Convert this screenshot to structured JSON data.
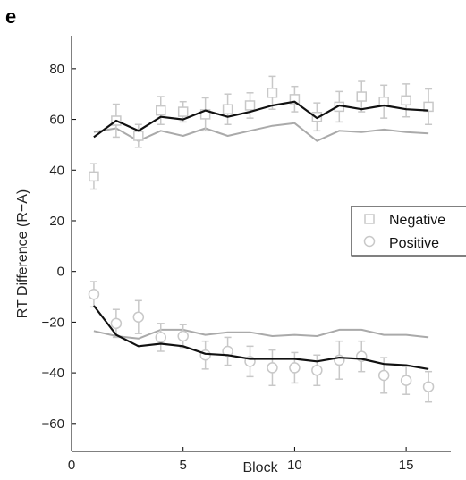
{
  "panel_label": "e",
  "colors": {
    "marker": "#c8c8c8",
    "model_dark": "#111111",
    "model_light": "#aaaaaa",
    "axis": "#000000"
  },
  "chart_data": {
    "type": "line",
    "xlabel": "Block",
    "ylabel": "RT Difference (R−A)",
    "xlim": [
      0,
      17
    ],
    "ylim": [
      -71,
      93
    ],
    "xticks": [
      0,
      5,
      10,
      15
    ],
    "yticks": [
      -60,
      -40,
      -20,
      0,
      20,
      40,
      60,
      80
    ],
    "ytick_labels": [
      "−60",
      "−40",
      "−20",
      "0",
      "20",
      "40",
      "60",
      "80"
    ],
    "x": [
      1,
      2,
      3,
      4,
      5,
      6,
      7,
      8,
      9,
      10,
      11,
      12,
      13,
      14,
      15,
      16
    ],
    "legend": {
      "position": "right",
      "entries": [
        "Negative",
        "Positive"
      ]
    },
    "series": [
      {
        "name": "Negative",
        "marker": "square",
        "values": [
          37.5,
          59.5,
          53.5,
          63.5,
          63,
          62,
          64,
          65.5,
          70.5,
          68,
          61,
          65,
          69,
          67,
          67.5,
          65
        ],
        "errors": [
          5,
          6.5,
          4.5,
          5.5,
          4,
          6.5,
          6,
          5,
          6.5,
          5,
          5.5,
          6,
          6,
          6.5,
          6.5,
          7
        ],
        "model_dark": [
          53,
          59.5,
          55.5,
          61,
          60,
          63.5,
          61,
          63,
          65.5,
          67,
          60.5,
          65.5,
          64,
          65.5,
          64,
          63.5
        ],
        "model_light": [
          55,
          56.5,
          51.5,
          55.5,
          53.5,
          56.5,
          53.5,
          55.5,
          57.5,
          58.5,
          51.5,
          55.5,
          55,
          56,
          55,
          54.5
        ]
      },
      {
        "name": "Positive",
        "marker": "circle",
        "values": [
          -9,
          -20.5,
          -18,
          -26,
          -25.5,
          -33,
          -31.5,
          -35.5,
          -38,
          -38,
          -39,
          -35,
          -33.5,
          -41,
          -43,
          -45.5
        ],
        "errors": [
          5,
          5.5,
          6.5,
          5.5,
          4.5,
          5.5,
          5.5,
          6,
          7,
          6,
          6,
          7.5,
          6,
          7,
          5.5,
          6
        ],
        "model_dark": [
          -13.5,
          -25,
          -29.5,
          -28.5,
          -29.5,
          -32.5,
          -33,
          -34.5,
          -34.5,
          -34.5,
          -35.5,
          -34,
          -34.5,
          -36.5,
          -37,
          -38.5
        ],
        "model_light": [
          -23.5,
          -25.5,
          -26.5,
          -23,
          -23,
          -25,
          -24,
          -24,
          -25.5,
          -25,
          -25.5,
          -23,
          -23,
          -25,
          -25,
          -26
        ]
      }
    ]
  }
}
